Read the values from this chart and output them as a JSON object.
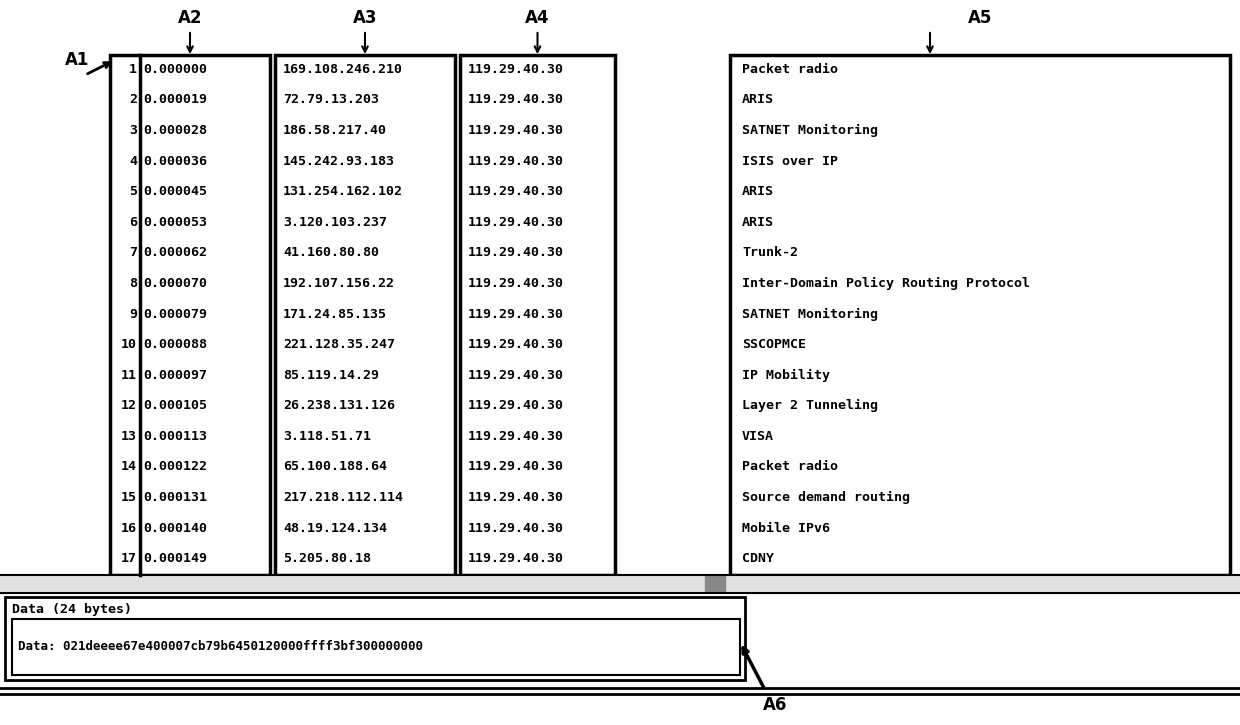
{
  "bg_color": "#ffffff",
  "font_family": "monospace",
  "col1_rows": [
    "1",
    "2",
    "3",
    "4",
    "5",
    "6",
    "7",
    "8",
    "9",
    "10",
    "11",
    "12",
    "13",
    "14",
    "15",
    "16",
    "17"
  ],
  "col2_rows": [
    "0.000000",
    "0.000019",
    "0.000028",
    "0.000036",
    "0.000045",
    "0.000053",
    "0.000062",
    "0.000070",
    "0.000079",
    "0.000088",
    "0.000097",
    "0.000105",
    "0.000113",
    "0.000122",
    "0.000131",
    "0.000140",
    "0.000149"
  ],
  "col3_rows": [
    "169.108.246.210",
    "72.79.13.203",
    "186.58.217.40",
    "145.242.93.183",
    "131.254.162.102",
    "3.120.103.237",
    "41.160.80.80",
    "192.107.156.22",
    "171.24.85.135",
    "221.128.35.247",
    "85.119.14.29",
    "26.238.131.126",
    "3.118.51.71",
    "65.100.188.64",
    "217.218.112.114",
    "48.19.124.134",
    "5.205.80.18"
  ],
  "col4_rows": [
    "119.29.40.30",
    "119.29.40.30",
    "119.29.40.30",
    "119.29.40.30",
    "119.29.40.30",
    "119.29.40.30",
    "119.29.40.30",
    "119.29.40.30",
    "119.29.40.30",
    "119.29.40.30",
    "119.29.40.30",
    "119.29.40.30",
    "119.29.40.30",
    "119.29.40.30",
    "119.29.40.30",
    "119.29.40.30",
    "119.29.40.30"
  ],
  "col5_rows": [
    "Packet radio",
    "ARIS",
    "SATNET Monitoring",
    "ISIS over IP",
    "ARIS",
    "ARIS",
    "Trunk-2",
    "Inter-Domain Policy Routing Protocol",
    "SATNET Monitoring",
    "SSCOPMCE",
    "IP Mobility",
    "Layer 2 Tunneling",
    "VISA",
    "Packet radio",
    "Source demand routing",
    "Mobile IPv6",
    "CDNY"
  ],
  "label_a1": "A1",
  "label_a2": "A2",
  "label_a3": "A3",
  "label_a4": "A4",
  "label_a5": "A5",
  "label_a6": "A6",
  "data_header": "Data (24 bytes)",
  "data_value": "Data: 021deeee67e400007cb79b6450120000ffff3bf300000000",
  "scrollbar_text": "<<<",
  "font_size": 9.5,
  "header_font_size": 11
}
